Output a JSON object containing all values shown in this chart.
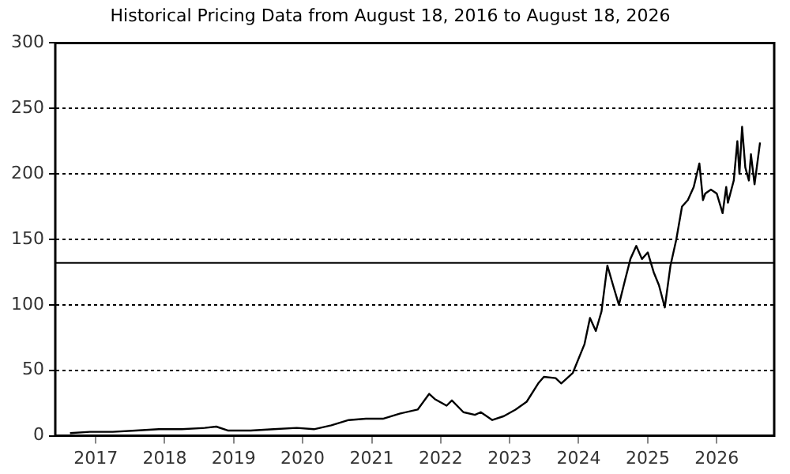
{
  "chart_data": {
    "type": "line",
    "title": "Historical Pricing Data from August 18, 2016 to August 18, 2026",
    "x": [
      "2016-08-18",
      "2016-12",
      "2017-04",
      "2017-08",
      "2017-12",
      "2018-04",
      "2018-08",
      "2018-10",
      "2018-12",
      "2019-04",
      "2019-08",
      "2019-12",
      "2020-03",
      "2020-06",
      "2020-09",
      "2020-12",
      "2021-03",
      "2021-06",
      "2021-09",
      "2021-11",
      "2021-12",
      "2022-02",
      "2022-03",
      "2022-05",
      "2022-07",
      "2022-08",
      "2022-10",
      "2022-12",
      "2023-02",
      "2023-04",
      "2023-06",
      "2023-07",
      "2023-09",
      "2023-10",
      "2023-12",
      "2024-02",
      "2024-03",
      "2024-04",
      "2024-05",
      "2024-06",
      "2024-07",
      "2024-08",
      "2024-09",
      "2024-10",
      "2024-11",
      "2024-12",
      "2025-01",
      "2025-02",
      "2025-03",
      "2025-04",
      "2025-05",
      "2025-06",
      "2025-07",
      "2025-08",
      "2025-09",
      "2025-10",
      "2025-10-20",
      "2025-11",
      "2025-12",
      "2026-01",
      "2026-02",
      "2026-02-20",
      "2026-03",
      "2026-04",
      "2026-04-20",
      "2026-05",
      "2026-05-15",
      "2026-06",
      "2026-06-20",
      "2026-07",
      "2026-07-20",
      "2026-08-18"
    ],
    "series": [
      {
        "color": "#000000",
        "values": [
          2,
          3,
          3,
          4,
          5,
          5,
          6,
          7,
          4,
          4,
          5,
          6,
          5,
          8,
          12,
          13,
          13,
          17,
          20,
          32,
          28,
          23,
          27,
          18,
          16,
          18,
          12,
          15,
          20,
          26,
          40,
          45,
          44,
          40,
          48,
          70,
          90,
          80,
          95,
          130,
          115,
          100,
          118,
          135,
          145,
          135,
          140,
          125,
          115,
          98,
          130,
          150,
          175,
          180,
          190,
          208,
          180,
          185,
          188,
          185,
          170,
          190,
          178,
          195,
          225,
          200,
          236,
          205,
          195,
          215,
          192,
          224
        ]
      }
    ],
    "ylim": [
      0,
      300
    ],
    "yticks": [
      0,
      50,
      100,
      150,
      200,
      250,
      300
    ],
    "xlim": [
      "2016-06",
      "2026-11"
    ],
    "xticks": [
      "2017",
      "2018",
      "2019",
      "2020",
      "2021",
      "2022",
      "2023",
      "2024",
      "2025",
      "2026"
    ],
    "grid": "y",
    "marker": "none",
    "line_style": "solid",
    "ref_lines": [
      {
        "axis": "y",
        "value": 132,
        "color": "#000000"
      }
    ]
  }
}
